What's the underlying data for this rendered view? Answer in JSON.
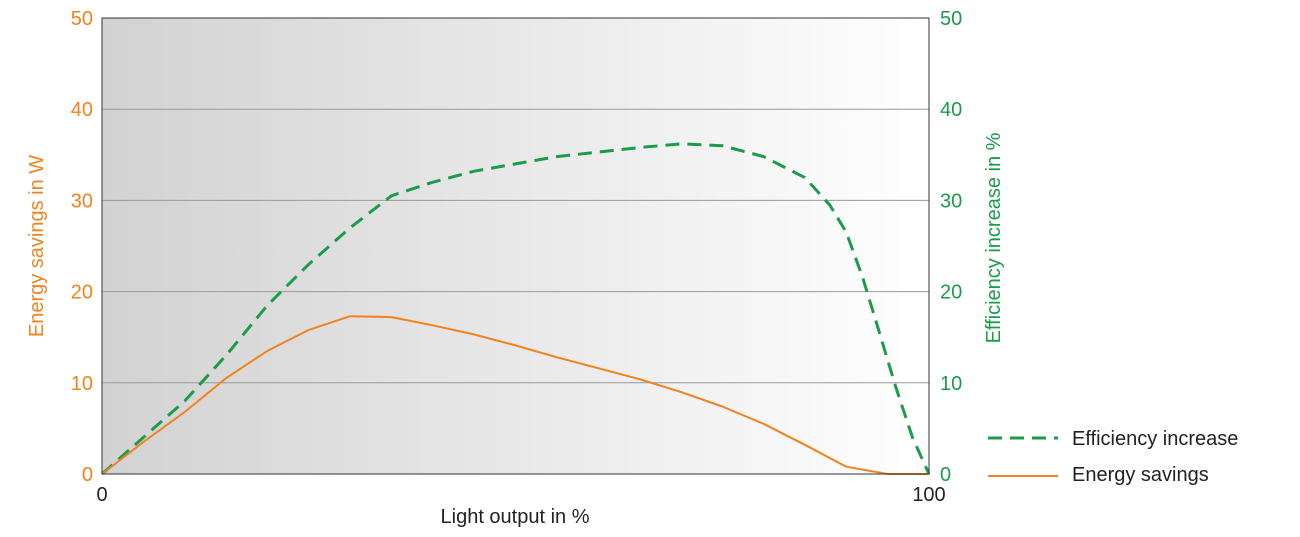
{
  "chart_data": {
    "type": "line",
    "xlabel": "Light output in %",
    "ylabel_left": "Energy savings in W",
    "ylabel_right": "Efficiency increase in %",
    "xlim": [
      0,
      100
    ],
    "ylim_left": [
      0,
      50
    ],
    "ylim_right": [
      0,
      50
    ],
    "x_ticks": [
      "0",
      "100"
    ],
    "y_ticks_left": [
      "0",
      "10",
      "20",
      "30",
      "40",
      "50"
    ],
    "y_ticks_right": [
      "0",
      "10",
      "20",
      "30",
      "40",
      "50"
    ],
    "grid": "horizontal",
    "legend_position": "bottom-right",
    "colors": {
      "energy": "#f0831e",
      "efficiency": "#1a9c4a",
      "grid": "#9a9a9a",
      "frame": "#333333",
      "bg_left": "#d2d2d2",
      "bg_right": "#ffffff"
    },
    "series": [
      {
        "name": "Efficiency increase",
        "axis": "right",
        "style": "dashed",
        "color": "#1a9c4a",
        "x": [
          0,
          5,
          10,
          15,
          20,
          25,
          30,
          35,
          40,
          45,
          50,
          55,
          60,
          65,
          70,
          75,
          80,
          85,
          88,
          90,
          92,
          94,
          96,
          98,
          100
        ],
        "y": [
          0,
          4,
          8,
          13,
          18.5,
          23,
          27,
          30.5,
          32,
          33.2,
          34,
          34.8,
          35.3,
          35.8,
          36.2,
          36,
          34.8,
          32.5,
          29.5,
          26.5,
          21.5,
          15.5,
          9.5,
          4,
          0
        ]
      },
      {
        "name": "Energy savings",
        "axis": "left",
        "style": "solid",
        "color": "#f0831e",
        "x": [
          0,
          5,
          10,
          15,
          20,
          25,
          30,
          35,
          40,
          45,
          50,
          55,
          60,
          65,
          70,
          75,
          80,
          85,
          90,
          95,
          100
        ],
        "y": [
          0,
          3.5,
          6.8,
          10.5,
          13.5,
          15.8,
          17.3,
          17.2,
          16.3,
          15.3,
          14.1,
          12.8,
          11.6,
          10.4,
          9.0,
          7.4,
          5.5,
          3.2,
          0.8,
          0,
          0
        ]
      }
    ]
  }
}
